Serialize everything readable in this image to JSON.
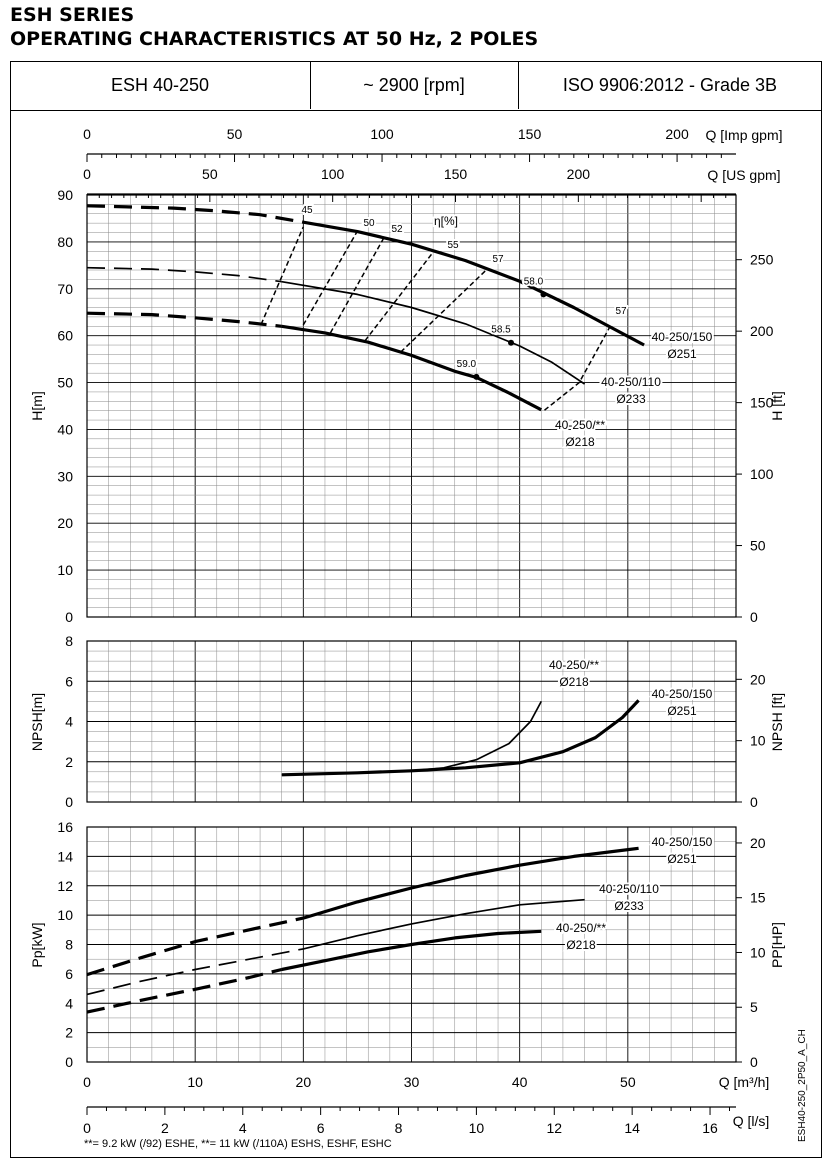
{
  "header": {
    "series": "ESH SERIES",
    "subtitle": "OPERATING CHARACTERISTICS AT 50 Hz, 2 POLES",
    "model": "ESH 40-250",
    "speed": "~ 2900 [rpm]",
    "grade": "ISO 9906:2012 - Grade 3B"
  },
  "footnote": "**= 9.2 kW (/92) ESHE,  **= 11 kW (/110A) ESHS, ESHF, ESHC",
  "drawing_code": "ESH40-250_2P50_A_CH",
  "chart_data": [
    {
      "type": "line",
      "panel": "head",
      "ylabel": "H[m]",
      "ylabel_right": "H [ft]",
      "xlabel": "Q [m³/h]",
      "xlim": [
        0,
        60
      ],
      "ylim": [
        0,
        90
      ],
      "yticks": [
        0,
        10,
        20,
        30,
        40,
        50,
        60,
        70,
        80,
        90
      ],
      "yticks_right_ft": [
        0,
        50,
        100,
        150,
        200,
        250
      ],
      "secondary_x_axes": [
        {
          "label": "Q [Imp gpm]",
          "ticks": [
            0,
            50,
            100,
            150,
            200
          ]
        },
        {
          "label": "Q [US gpm]",
          "ticks": [
            0,
            50,
            100,
            150,
            200
          ]
        }
      ],
      "grid": true,
      "series": [
        {
          "name": "40-250/150",
          "label2": "Ø251",
          "weight": "heavy",
          "dashed": [
            [
              0,
              87.7
            ],
            [
              8,
              87.2
            ],
            [
              12,
              86.6
            ],
            [
              16,
              85.8
            ],
            [
              20,
              84.2
            ]
          ],
          "solid": [
            [
              20,
              84.2
            ],
            [
              25,
              82.2
            ],
            [
              30,
              79.5
            ],
            [
              35,
              76.0
            ],
            [
              40,
              71.6
            ],
            [
              45,
              66.0
            ],
            [
              48,
              62.3
            ],
            [
              51.5,
              58.0
            ]
          ]
        },
        {
          "name": "40-250/110",
          "label2": "Ø233",
          "weight": "medium",
          "dashed": [
            [
              0,
              74.5
            ],
            [
              6,
              74.2
            ],
            [
              10,
              73.6
            ],
            [
              14,
              72.8
            ],
            [
              18,
              71.5
            ]
          ],
          "solid": [
            [
              18,
              71.5
            ],
            [
              25,
              68.8
            ],
            [
              30,
              66.0
            ],
            [
              35,
              62.5
            ],
            [
              40,
              57.8
            ],
            [
              43,
              54.3
            ],
            [
              46,
              49.7
            ]
          ]
        },
        {
          "name": "40-250/**",
          "label2": "Ø218",
          "weight": "heavy",
          "dashed": [
            [
              0,
              64.8
            ],
            [
              6,
              64.5
            ],
            [
              10,
              63.8
            ],
            [
              14,
              63.0
            ],
            [
              18,
              62.0
            ]
          ],
          "solid": [
            [
              18,
              62.0
            ],
            [
              22,
              60.6
            ],
            [
              26,
              58.6
            ],
            [
              30,
              55.8
            ],
            [
              34,
              52.4
            ],
            [
              36,
              51.1
            ],
            [
              39,
              47.8
            ],
            [
              42,
              44.2
            ]
          ]
        }
      ],
      "efficiency_label": "η[%]",
      "efficiency_isolines": [
        {
          "label": "45",
          "points": [
            [
              16.1,
              62.4
            ],
            [
              20,
              83.2
            ]
          ]
        },
        {
          "label": "50",
          "points": [
            [
              20,
              62.3
            ],
            [
              25,
              82.3
            ]
          ]
        },
        {
          "label": "52",
          "points": [
            [
              22.5,
              60.6
            ],
            [
              27.5,
              81.1
            ]
          ]
        },
        {
          "label": "55",
          "points": [
            [
              25.7,
              58.9
            ],
            [
              32,
              77.8
            ]
          ]
        },
        {
          "label": "57",
          "points": [
            [
              29,
              56.5
            ],
            [
              37,
              74.2
            ]
          ]
        },
        {
          "label": "57",
          "points": [
            [
              42.3,
              44.1
            ],
            [
              45.5,
              50.0
            ],
            [
              48.3,
              61.7
            ]
          ]
        }
      ],
      "efficiency_points": [
        {
          "label": "58.0",
          "x": 42.2,
          "y": 68.8
        },
        {
          "label": "58.5",
          "x": 39.2,
          "y": 58.5
        },
        {
          "label": "59.0",
          "x": 36.0,
          "y": 51.2
        }
      ]
    },
    {
      "type": "line",
      "panel": "npsh",
      "ylabel": "NPSH[m]",
      "ylabel_right": "NPSH [ft]",
      "xlim": [
        0,
        60
      ],
      "ylim": [
        0,
        8
      ],
      "yticks": [
        0,
        2,
        4,
        6,
        8
      ],
      "yticks_right_ft": [
        0,
        10,
        20
      ],
      "grid": true,
      "series": [
        {
          "name": "40-250/**",
          "label2": "Ø218",
          "weight": "medium",
          "solid": [
            [
              18,
              1.35
            ],
            [
              25,
              1.45
            ],
            [
              30,
              1.55
            ],
            [
              33,
              1.7
            ],
            [
              36,
              2.1
            ],
            [
              39,
              2.9
            ],
            [
              41,
              4.0
            ],
            [
              42,
              5.0
            ]
          ]
        },
        {
          "name": "40-250/150",
          "label2": "Ø251",
          "weight": "heavy",
          "solid": [
            [
              18,
              1.35
            ],
            [
              25,
              1.45
            ],
            [
              30,
              1.55
            ],
            [
              35,
              1.7
            ],
            [
              40,
              1.95
            ],
            [
              44,
              2.5
            ],
            [
              47,
              3.2
            ],
            [
              49.5,
              4.2
            ],
            [
              51,
              5.05
            ]
          ]
        }
      ]
    },
    {
      "type": "line",
      "panel": "power",
      "ylabel": "Pp[kW]",
      "ylabel_right": "PP[HP]",
      "xlabel": "Q [m³/h]",
      "xlim": [
        0,
        60
      ],
      "ylim": [
        0,
        16
      ],
      "yticks": [
        0,
        2,
        4,
        6,
        8,
        10,
        12,
        14,
        16
      ],
      "xticks": [
        0,
        10,
        20,
        30,
        40,
        50
      ],
      "yticks_right_hp": [
        0,
        5,
        10,
        15,
        20
      ],
      "secondary_x_axis": {
        "label": "Q [l/s]",
        "ticks": [
          0,
          2,
          4,
          6,
          8,
          10,
          12,
          14,
          16
        ]
      },
      "grid": true,
      "series": [
        {
          "name": "40-250/150",
          "label2": "Ø251",
          "weight": "heavy",
          "dashed": [
            [
              0,
              5.95
            ],
            [
              5,
              7.1
            ],
            [
              10,
              8.2
            ],
            [
              15,
              9.0
            ],
            [
              20,
              9.8
            ]
          ],
          "solid": [
            [
              20,
              9.8
            ],
            [
              25,
              10.9
            ],
            [
              30,
              11.85
            ],
            [
              35,
              12.7
            ],
            [
              40,
              13.4
            ],
            [
              45,
              14.0
            ],
            [
              51,
              14.55
            ]
          ]
        },
        {
          "name": "40-250/110",
          "label2": "Ø233",
          "weight": "medium",
          "dashed": [
            [
              0,
              4.6
            ],
            [
              5,
              5.5
            ],
            [
              10,
              6.3
            ],
            [
              15,
              7.0
            ],
            [
              20,
              7.7
            ]
          ],
          "solid": [
            [
              20,
              7.7
            ],
            [
              25,
              8.6
            ],
            [
              30,
              9.4
            ],
            [
              35,
              10.1
            ],
            [
              40,
              10.7
            ],
            [
              46,
              11.05
            ]
          ]
        },
        {
          "name": "40-250/**",
          "label2": "Ø218",
          "weight": "heavy",
          "dashed": [
            [
              0,
              3.4
            ],
            [
              5,
              4.2
            ],
            [
              10,
              4.95
            ],
            [
              15,
              5.75
            ],
            [
              18,
              6.3
            ]
          ],
          "solid": [
            [
              18,
              6.3
            ],
            [
              22,
              6.9
            ],
            [
              26,
              7.5
            ],
            [
              30,
              8.0
            ],
            [
              34,
              8.45
            ],
            [
              38,
              8.75
            ],
            [
              42,
              8.9
            ]
          ]
        }
      ]
    }
  ]
}
